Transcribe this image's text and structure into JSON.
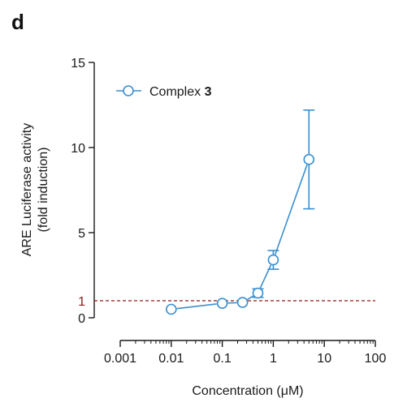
{
  "panel_label": "d",
  "chart_data": {
    "type": "scatter",
    "title": "",
    "xlabel": "Concentration (μM)",
    "ylabel_line1": "ARE Luciferase activity",
    "ylabel_line2": "(fold induction)",
    "xscale": "log",
    "xlim": [
      0.001,
      100
    ],
    "ylim": [
      0,
      15
    ],
    "x_ticks": [
      0.001,
      0.01,
      0.1,
      1,
      10,
      100
    ],
    "x_tick_labels": [
      "0.001",
      "0.01",
      "0.1",
      "1",
      "10",
      "100"
    ],
    "y_ticks": [
      0,
      5,
      10,
      15
    ],
    "y_tick_labels": [
      "0",
      "5",
      "10",
      "15"
    ],
    "grid": false,
    "legend": {
      "placement": "top-left"
    },
    "reference_line": {
      "y": 1,
      "label": "1",
      "color": "#8b1a1a",
      "style": "dashed"
    },
    "series": [
      {
        "name_prefix": "Complex ",
        "name_bold": "3",
        "color": "#3a8fd0",
        "marker": "open-circle",
        "x": [
          0.01,
          0.1,
          0.25,
          0.5,
          1,
          5
        ],
        "y": [
          0.5,
          0.85,
          0.9,
          1.45,
          3.4,
          9.3
        ],
        "error": [
          0,
          0,
          0,
          0.25,
          0.55,
          2.9
        ]
      }
    ]
  }
}
